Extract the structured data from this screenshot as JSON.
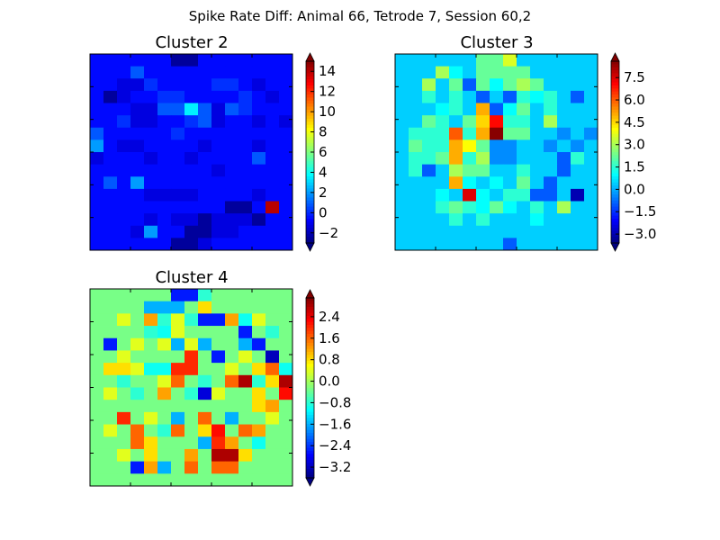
{
  "figure": {
    "suptitle": "Spike Rate Diff: Animal 66, Tetrode 7, Session 60,2"
  },
  "chart_data": [
    {
      "type": "heatmap",
      "title": "Cluster 2",
      "colormap": "jet",
      "xlabel": "",
      "ylabel": "",
      "axis_ticks_labeled": false,
      "vmin": -3,
      "vmax": 15,
      "colorbar_ticks": [
        "14",
        "12",
        "10",
        "8",
        "6",
        "4",
        "2",
        "0",
        "−2"
      ],
      "colorbar_tick_values": [
        14,
        12,
        10,
        8,
        6,
        4,
        2,
        0,
        -2
      ],
      "colorbar_extend": "both",
      "grid": [
        [
          -0.6,
          -0.6,
          -0.6,
          -0.6,
          -0.6,
          -0.6,
          -2.5,
          -2.5,
          -0.6,
          -0.6,
          -0.6,
          -0.6,
          -0.6,
          -0.6,
          -0.6
        ],
        [
          -0.6,
          -0.6,
          -0.6,
          0.8,
          -0.6,
          -0.6,
          -0.6,
          -0.6,
          -0.6,
          -0.6,
          -0.6,
          -0.6,
          -0.6,
          -0.6,
          -0.6
        ],
        [
          -0.6,
          -0.6,
          -1.3,
          -1.3,
          0.1,
          -0.6,
          -0.6,
          -0.6,
          -0.6,
          0.1,
          0.1,
          -0.6,
          -1.3,
          -0.6,
          -0.6
        ],
        [
          -0.6,
          -2.5,
          -1.3,
          -0.6,
          -0.6,
          0.1,
          0.1,
          -0.6,
          -0.6,
          -0.6,
          -0.6,
          0.1,
          -0.6,
          -1.3,
          -0.6
        ],
        [
          -0.6,
          -0.6,
          -0.6,
          -1.3,
          -1.3,
          0.8,
          0.8,
          3.5,
          0.8,
          -1.3,
          0.8,
          0.1,
          -0.6,
          -0.6,
          -0.6
        ],
        [
          -0.6,
          -0.6,
          0.1,
          -1.3,
          -1.3,
          -0.6,
          -0.6,
          0.1,
          0.8,
          -1.3,
          -0.6,
          -0.6,
          -1.3,
          -0.6,
          -1.3
        ],
        [
          0.8,
          -0.6,
          -0.6,
          -0.6,
          -0.6,
          -0.6,
          0.1,
          -0.6,
          -0.6,
          -0.6,
          -0.6,
          -0.6,
          -0.6,
          -0.6,
          -0.6
        ],
        [
          2.0,
          -0.6,
          -1.3,
          -1.3,
          -0.6,
          -0.6,
          -0.6,
          -0.6,
          -1.3,
          -0.6,
          -0.6,
          -0.6,
          -1.3,
          -0.6,
          -0.6
        ],
        [
          -1.3,
          -0.6,
          -0.6,
          -0.6,
          -1.3,
          -0.6,
          -0.6,
          -1.3,
          -0.6,
          -0.6,
          -0.6,
          -0.6,
          0.8,
          -0.6,
          -0.6
        ],
        [
          -0.6,
          -0.6,
          -0.6,
          -0.6,
          -0.6,
          -0.6,
          -0.6,
          -0.6,
          -0.6,
          -1.3,
          -0.6,
          -0.6,
          -0.6,
          -0.6,
          -0.6
        ],
        [
          -0.6,
          0.8,
          -0.6,
          2.0,
          -0.6,
          -0.6,
          -0.6,
          -0.6,
          -0.6,
          -0.6,
          -0.6,
          -0.6,
          -0.6,
          -0.6,
          -0.6
        ],
        [
          -0.6,
          -0.6,
          -0.6,
          -0.6,
          -1.3,
          -1.3,
          -1.3,
          -1.3,
          -0.6,
          -0.6,
          -0.6,
          -0.6,
          -1.3,
          -0.6,
          -0.6
        ],
        [
          -0.6,
          -0.6,
          -0.6,
          -0.6,
          -0.6,
          -0.6,
          -0.6,
          -0.6,
          -0.6,
          -0.6,
          -2.5,
          -2.5,
          -0.6,
          14.0,
          -0.6
        ],
        [
          -0.6,
          -0.6,
          -0.6,
          -0.6,
          -1.3,
          -0.6,
          -1.3,
          -1.3,
          -2.5,
          -1.3,
          -1.3,
          -1.3,
          -2.5,
          -0.6,
          -0.6
        ],
        [
          -0.6,
          -0.6,
          -0.6,
          -1.3,
          2.0,
          -0.6,
          -0.6,
          -2.5,
          -2.5,
          -1.3,
          -1.3,
          -0.6,
          -0.6,
          -0.6,
          -0.6
        ],
        [
          -0.6,
          -0.6,
          -0.6,
          -0.6,
          -0.6,
          -0.6,
          -2.5,
          -2.5,
          -1.3,
          -0.6,
          -0.6,
          -0.6,
          -0.6,
          -0.6,
          -0.6
        ]
      ]
    },
    {
      "type": "heatmap",
      "title": "Cluster 3",
      "colormap": "jet",
      "xlabel": "",
      "ylabel": "",
      "axis_ticks_labeled": false,
      "vmin": -3.6,
      "vmax": 8.6,
      "colorbar_ticks": [
        "7.5",
        "6.0",
        "4.5",
        "3.0",
        "1.5",
        "0.0",
        "−1.5",
        "−3.0"
      ],
      "colorbar_tick_values": [
        7.5,
        6.0,
        4.5,
        3.0,
        1.5,
        0.0,
        -1.5,
        -3.0
      ],
      "colorbar_extend": "both",
      "grid": [
        [
          0.4,
          0.4,
          0.4,
          0.4,
          0.4,
          0.4,
          2.2,
          2.2,
          3.6,
          0.4,
          0.4,
          0.4,
          0.4,
          0.4,
          0.4
        ],
        [
          0.4,
          0.4,
          0.4,
          3.0,
          1.0,
          0.4,
          2.2,
          2.2,
          2.2,
          2.2,
          0.4,
          0.4,
          0.4,
          0.4,
          0.4
        ],
        [
          0.4,
          0.4,
          3.0,
          0.4,
          2.2,
          -1.0,
          2.2,
          1.0,
          2.2,
          3.0,
          2.2,
          0.4,
          0.4,
          0.4,
          0.4
        ],
        [
          0.4,
          0.4,
          1.5,
          0.4,
          1.5,
          0.4,
          -1.0,
          0.4,
          -1.0,
          1.5,
          1.0,
          1.5,
          0.4,
          -1.0,
          0.4
        ],
        [
          0.4,
          0.4,
          0.4,
          1.0,
          1.5,
          0.4,
          5.0,
          -1.0,
          1.0,
          2.2,
          0.4,
          1.5,
          0.4,
          0.4,
          0.4
        ],
        [
          0.4,
          0.4,
          2.2,
          1.5,
          0.4,
          2.2,
          4.5,
          7.0,
          1.5,
          1.5,
          0.4,
          3.0,
          0.4,
          0.4,
          0.4
        ],
        [
          0.4,
          1.5,
          1.5,
          1.5,
          6.0,
          1.5,
          5.0,
          8.5,
          2.2,
          2.2,
          0.4,
          0.4,
          -0.4,
          0.4,
          -0.4
        ],
        [
          0.4,
          2.2,
          1.5,
          1.5,
          5.0,
          4.0,
          2.2,
          -0.4,
          -0.4,
          0.4,
          0.4,
          -0.4,
          0.4,
          -0.4,
          0.4
        ],
        [
          0.4,
          1.5,
          1.5,
          2.2,
          5.0,
          1.5,
          3.0,
          -0.4,
          -0.4,
          0.4,
          0.4,
          0.4,
          -1.0,
          1.5,
          0.4
        ],
        [
          0.4,
          1.5,
          -1.0,
          0.4,
          3.0,
          2.2,
          2.2,
          0.4,
          0.4,
          1.5,
          0.4,
          0.4,
          -1.0,
          0.4,
          0.4
        ],
        [
          0.4,
          0.4,
          0.4,
          0.4,
          5.0,
          1.0,
          0.4,
          1.0,
          0.4,
          2.2,
          0.4,
          -1.0,
          0.4,
          0.4,
          0.4
        ],
        [
          0.4,
          0.4,
          0.4,
          1.0,
          0.4,
          7.5,
          1.0,
          0.4,
          1.5,
          1.5,
          -1.0,
          -1.0,
          0.4,
          -3.0,
          0.4
        ],
        [
          0.4,
          0.4,
          0.4,
          1.5,
          2.2,
          1.5,
          1.0,
          2.2,
          1.0,
          0.4,
          1.5,
          0.4,
          3.0,
          0.4,
          0.4
        ],
        [
          0.4,
          0.4,
          0.4,
          0.4,
          1.5,
          0.4,
          1.5,
          0.4,
          0.4,
          0.4,
          1.0,
          0.4,
          0.4,
          0.4,
          0.4
        ],
        [
          0.4,
          0.4,
          0.4,
          0.4,
          0.4,
          0.4,
          0.4,
          0.4,
          0.4,
          0.4,
          0.4,
          0.4,
          0.4,
          0.4,
          0.4
        ],
        [
          0.4,
          0.4,
          0.4,
          0.4,
          0.4,
          0.4,
          0.4,
          0.4,
          -1.0,
          0.4,
          0.4,
          0.4,
          0.4,
          0.4,
          0.4
        ]
      ]
    },
    {
      "type": "heatmap",
      "title": "Cluster 4",
      "colormap": "jet",
      "xlabel": "",
      "ylabel": "",
      "axis_ticks_labeled": false,
      "vmin": -3.6,
      "vmax": 3.1,
      "colorbar_ticks": [
        "2.4",
        "1.6",
        "0.8",
        "0.0",
        "−0.8",
        "−1.6",
        "−2.4",
        "−3.2"
      ],
      "colorbar_tick_values": [
        2.4,
        1.6,
        0.8,
        0.0,
        -0.8,
        -1.6,
        -2.4,
        -3.2
      ],
      "colorbar_extend": "both",
      "grid": [
        [
          -0.3,
          -0.3,
          -0.3,
          -0.3,
          -0.3,
          -0.3,
          -2.6,
          -2.6,
          -0.8,
          -0.3,
          -0.3,
          -0.3,
          -0.3,
          -0.3,
          -0.3
        ],
        [
          -0.3,
          -0.3,
          -0.3,
          -0.3,
          -1.6,
          -1.6,
          -1.6,
          -0.3,
          0.8,
          -0.3,
          -0.3,
          -0.3,
          -0.3,
          -0.3,
          -0.3
        ],
        [
          -0.3,
          -0.3,
          0.4,
          -0.3,
          1.2,
          -0.8,
          0.4,
          -0.8,
          -2.6,
          -2.6,
          1.2,
          -1.0,
          0.4,
          -0.3,
          -0.3
        ],
        [
          -0.3,
          -0.3,
          -0.3,
          -0.3,
          -0.8,
          -1.0,
          0.4,
          -0.3,
          -0.3,
          -0.3,
          -0.3,
          -2.6,
          -0.3,
          -0.8,
          -0.3
        ],
        [
          -0.3,
          -2.6,
          -0.3,
          0.4,
          -0.3,
          0.4,
          -1.6,
          0.4,
          -1.6,
          -0.3,
          -0.3,
          -1.6,
          -2.6,
          -0.3,
          -0.3
        ],
        [
          -0.3,
          -0.3,
          0.4,
          -0.3,
          -0.3,
          -0.3,
          -0.3,
          2.0,
          -0.3,
          -2.6,
          -0.3,
          0.4,
          -0.3,
          -3.2,
          -0.3
        ],
        [
          -0.3,
          0.8,
          0.8,
          0.4,
          -1.0,
          -1.0,
          2.0,
          2.0,
          -0.3,
          -0.3,
          0.4,
          -0.3,
          0.8,
          1.6,
          -1.0
        ],
        [
          -0.3,
          -0.3,
          -0.8,
          -0.3,
          -0.3,
          0.4,
          1.6,
          -0.3,
          -0.8,
          -0.3,
          1.6,
          2.8,
          -0.8,
          0.8,
          2.8
        ],
        [
          -0.3,
          0.4,
          -0.3,
          -0.8,
          -0.3,
          1.2,
          -0.3,
          -0.8,
          -3.0,
          0.4,
          -0.3,
          -0.3,
          0.8,
          -0.3,
          2.2
        ],
        [
          -0.3,
          -0.3,
          -0.3,
          -0.3,
          -0.3,
          -0.3,
          -0.3,
          -0.3,
          -0.3,
          -0.3,
          -0.3,
          -0.3,
          0.8,
          1.2,
          -0.3
        ],
        [
          -0.3,
          -0.3,
          2.0,
          -0.3,
          0.4,
          -0.3,
          -1.6,
          -0.3,
          1.6,
          -0.3,
          -1.6,
          -0.3,
          -0.3,
          0.4,
          -0.3
        ],
        [
          -0.3,
          0.4,
          -0.3,
          1.6,
          -0.3,
          -0.8,
          1.6,
          -0.3,
          0.8,
          2.2,
          -0.3,
          1.6,
          1.2,
          -0.3,
          -0.3
        ],
        [
          -0.3,
          -0.3,
          -0.3,
          1.6,
          0.8,
          -0.3,
          -0.3,
          -0.3,
          -1.6,
          2.0,
          1.2,
          -0.3,
          -1.0,
          -0.3,
          -0.3
        ],
        [
          -0.3,
          -0.3,
          0.4,
          -0.3,
          0.8,
          -0.3,
          -0.3,
          1.2,
          -0.3,
          2.8,
          2.8,
          0.8,
          -0.3,
          -0.3,
          -0.3
        ],
        [
          -0.3,
          -0.3,
          -0.3,
          -2.6,
          1.2,
          -1.6,
          -0.3,
          1.6,
          -0.3,
          1.6,
          1.6,
          -0.3,
          -0.3,
          -0.3,
          -0.3
        ],
        [
          -0.3,
          -0.3,
          -0.3,
          -0.3,
          -0.3,
          -0.3,
          -0.3,
          -0.3,
          -0.3,
          -0.3,
          -0.3,
          -0.3,
          -0.3,
          -0.3,
          -0.3
        ]
      ]
    }
  ]
}
